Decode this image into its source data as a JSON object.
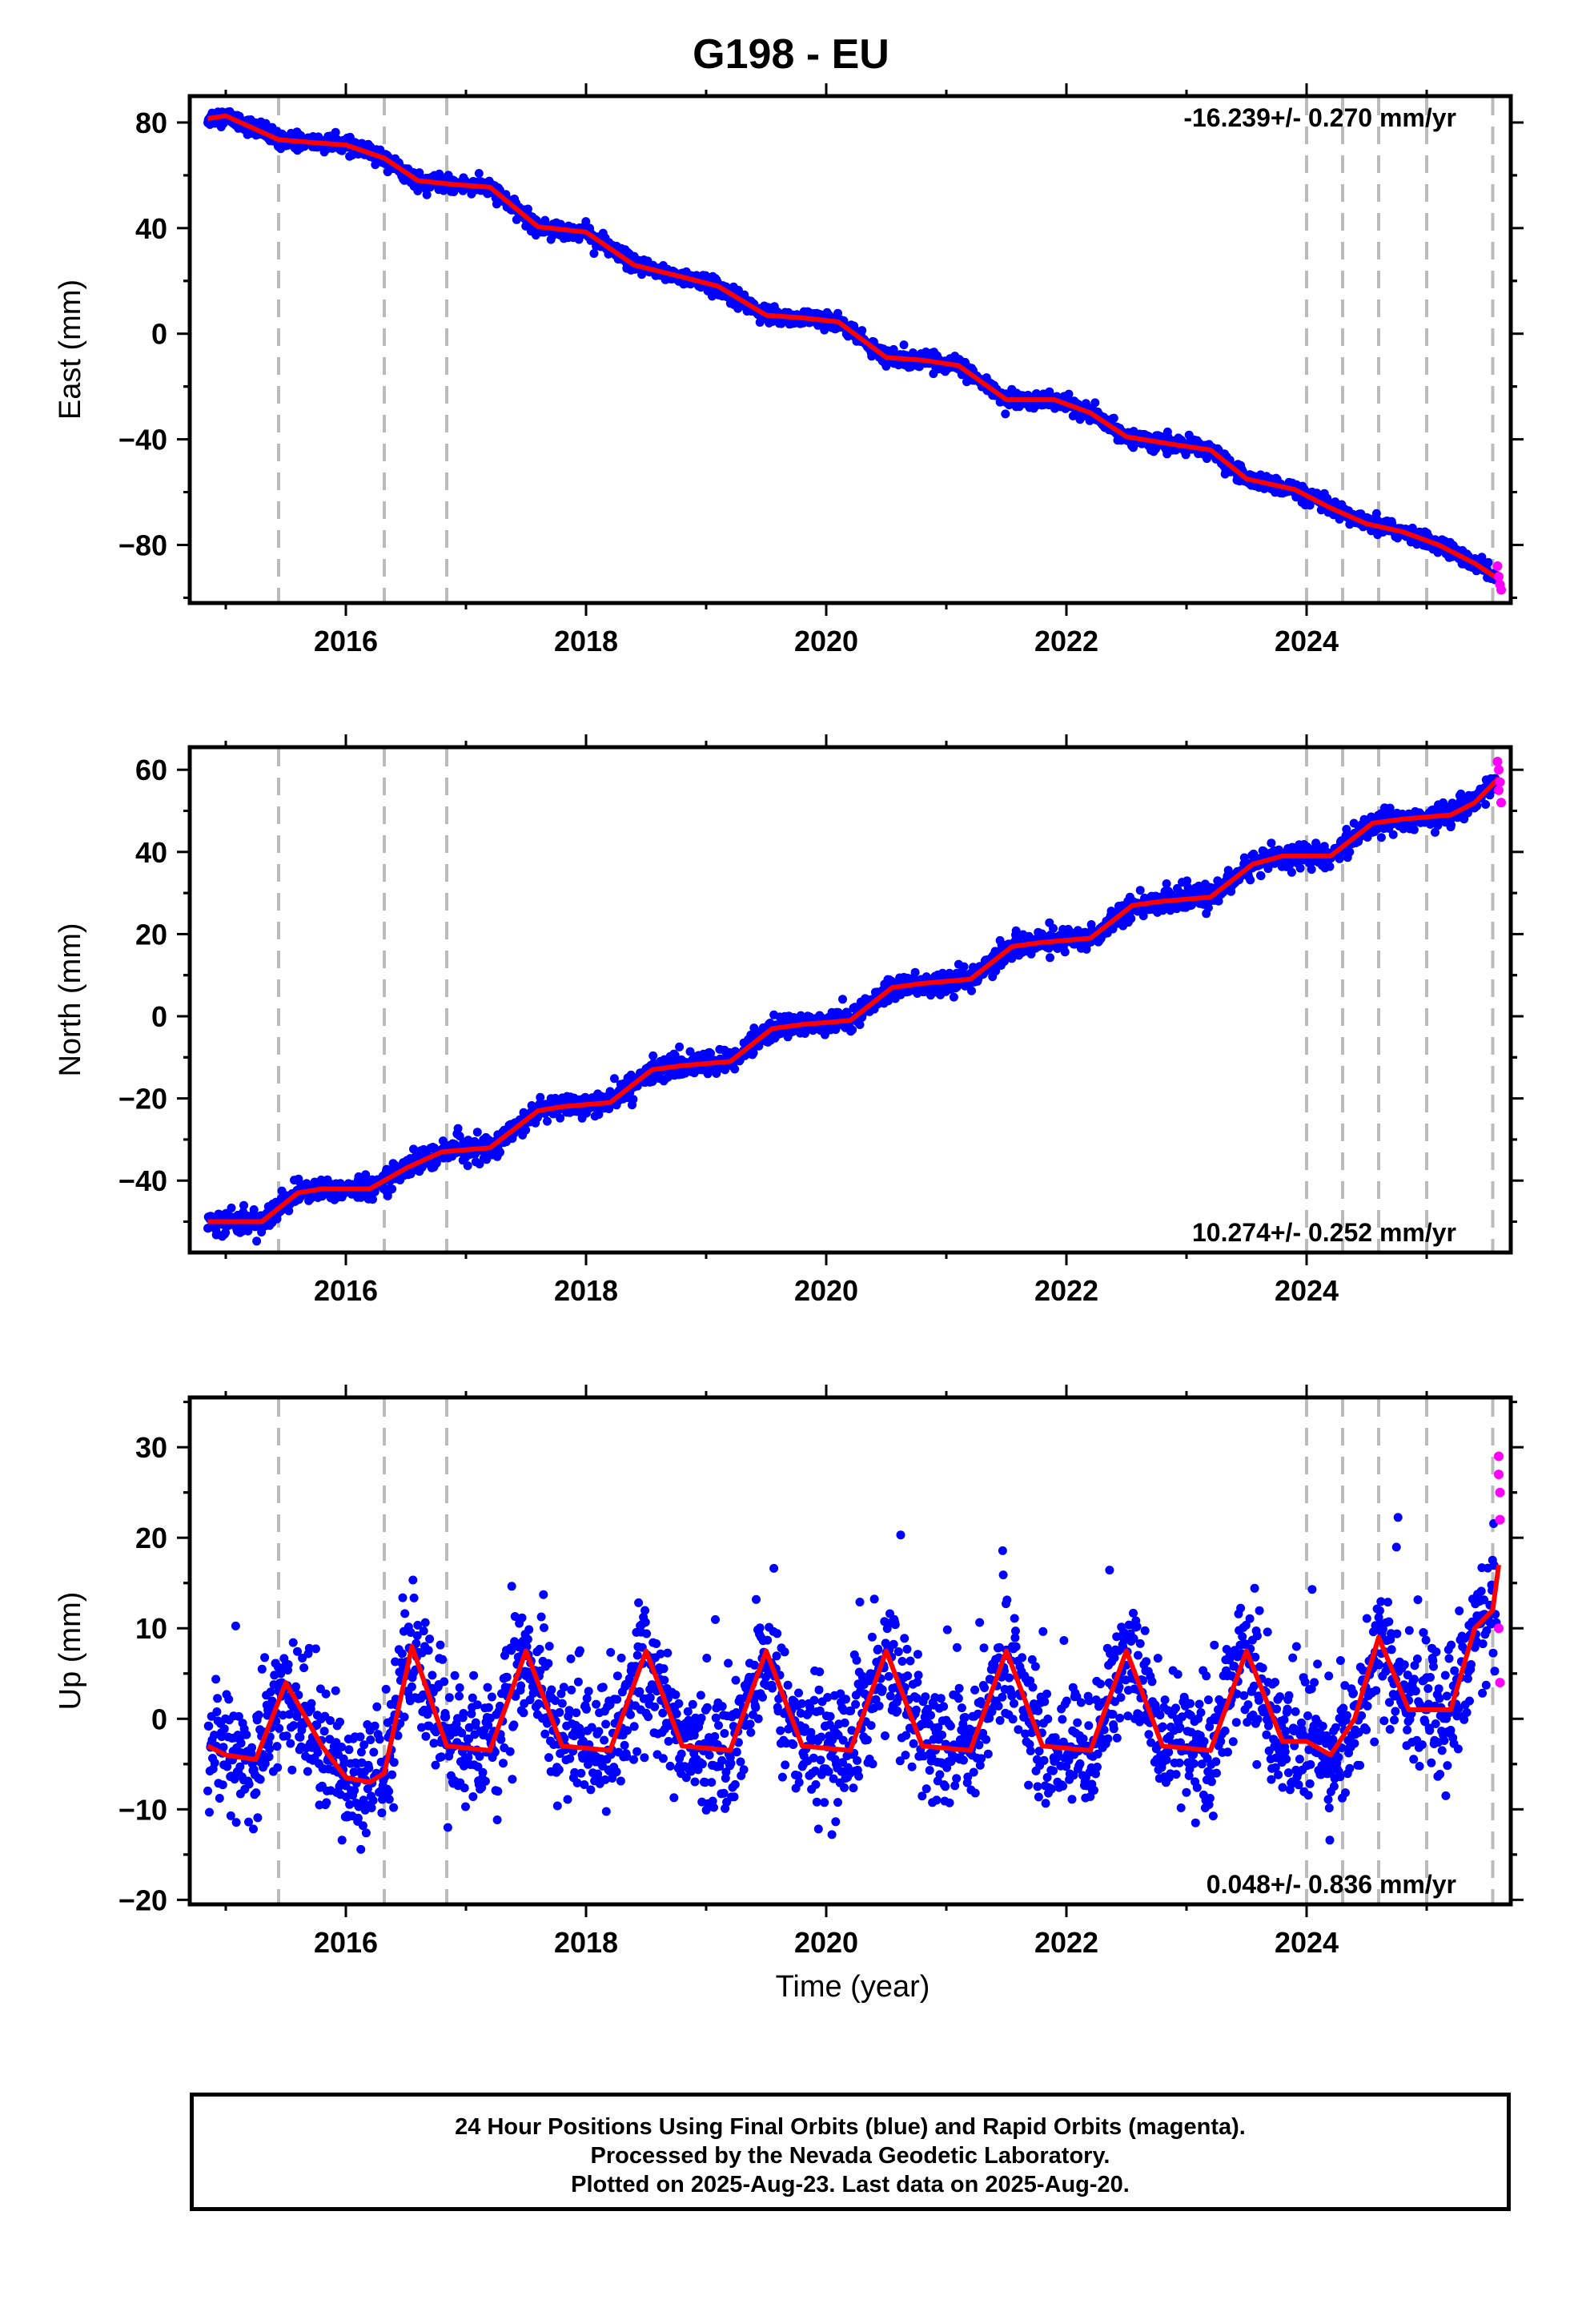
{
  "title": "G198 - EU",
  "xlabel": "Time (year)",
  "footer": {
    "line1": "24 Hour Positions Using Final Orbits (blue) and Rapid Orbits (magenta).",
    "line2": "Processed by the Nevada Geodetic Laboratory.",
    "line3": "Plotted on 2025-Aug-23. Last data on 2025-Aug-20."
  },
  "colors": {
    "final": "#0000ff",
    "rapid": "#ff00ff",
    "model": "#ff0000",
    "events": "#bbbbbb"
  },
  "chart_data": [
    {
      "type": "scatter",
      "component": "east",
      "ylabel": "East (mm)",
      "rate_text": "-16.239+/- 0.270 mm/yr",
      "rate_position": "top-right",
      "xlim": [
        2014.7,
        2025.7
      ],
      "ylim": [
        -102,
        90
      ],
      "yticks": [
        80,
        40,
        0,
        -40,
        -80
      ],
      "yticklabels": [
        "80",
        "40",
        "0",
        "−40",
        "−80"
      ],
      "xticks": [
        2016,
        2018,
        2020,
        2022,
        2024
      ],
      "xticklabels": [
        "2016",
        "2018",
        "2020",
        "2022",
        "2024"
      ],
      "event_lines": [
        2015.44,
        2016.32,
        2016.84,
        2024.0,
        2024.3,
        2024.6,
        2025.0,
        2025.55
      ],
      "model": {
        "x": [
          2014.85,
          2015.0,
          2015.44,
          2015.7,
          2016.0,
          2016.32,
          2016.6,
          2016.9,
          2017.2,
          2017.6,
          2018.0,
          2018.4,
          2018.8,
          2019.1,
          2019.5,
          2019.8,
          2020.1,
          2020.5,
          2020.8,
          2021.1,
          2021.5,
          2021.9,
          2022.2,
          2022.5,
          2022.9,
          2023.2,
          2023.5,
          2023.9,
          2024.2,
          2024.5,
          2024.8,
          2025.1,
          2025.4,
          2025.6
        ],
        "y": [
          81.5,
          82.5,
          73.5,
          72.5,
          71.5,
          66.5,
          58,
          56.5,
          55.5,
          40.5,
          38.5,
          26,
          21.5,
          18,
          7,
          6,
          4.5,
          -9,
          -10,
          -12,
          -25,
          -25,
          -30,
          -39,
          -42,
          -44,
          -55,
          -59,
          -66,
          -72,
          -75,
          -80,
          -87,
          -93
        ]
      },
      "rapid": {
        "x": [
          2025.59,
          2025.6,
          2025.61,
          2025.62
        ],
        "y": [
          -88,
          -92,
          -95,
          -97
        ]
      },
      "noise_sd": 1.5
    },
    {
      "type": "scatter",
      "component": "north",
      "ylabel": "North (mm)",
      "rate_text": "10.274+/- 0.252 mm/yr",
      "rate_position": "bottom-right",
      "xlim": [
        2014.7,
        2025.7
      ],
      "ylim": [
        -57.5,
        65.5
      ],
      "yticks": [
        60,
        40,
        20,
        0,
        -20,
        -40
      ],
      "yticklabels": [
        "60",
        "40",
        "20",
        "0",
        "−20",
        "−40"
      ],
      "xticks": [
        2016,
        2018,
        2020,
        2022,
        2024
      ],
      "xticklabels": [
        "2016",
        "2018",
        "2020",
        "2022",
        "2024"
      ],
      "event_lines": [
        2015.44,
        2016.32,
        2016.84,
        2024.0,
        2024.3,
        2024.6,
        2025.0,
        2025.55
      ],
      "model": {
        "x": [
          2014.85,
          2015.3,
          2015.6,
          2015.8,
          2016.2,
          2016.5,
          2016.8,
          2017.2,
          2017.6,
          2017.8,
          2018.2,
          2018.55,
          2018.8,
          2019.2,
          2019.55,
          2019.8,
          2020.2,
          2020.55,
          2020.8,
          2021.2,
          2021.55,
          2021.8,
          2022.2,
          2022.55,
          2022.8,
          2023.2,
          2023.55,
          2023.8,
          2024.2,
          2024.55,
          2024.8,
          2025.2,
          2025.4,
          2025.6
        ],
        "y": [
          -50,
          -50,
          -43,
          -42,
          -42,
          -37,
          -33,
          -32,
          -23,
          -22,
          -21,
          -13,
          -12,
          -11,
          -3,
          -2,
          -1,
          7,
          8,
          9,
          17,
          18,
          19,
          27,
          28,
          29,
          37,
          39,
          39,
          47,
          48,
          49,
          52,
          58
        ]
      },
      "rapid": {
        "x": [
          2025.59,
          2025.6,
          2025.61,
          2025.62,
          2025.6
        ],
        "y": [
          62,
          60,
          57,
          52,
          55
        ]
      },
      "noise_sd": 1.4
    },
    {
      "type": "scatter",
      "component": "up",
      "ylabel": "Up (mm)",
      "rate_text": "0.048+/- 0.836 mm/yr",
      "rate_position": "bottom-right",
      "xlim": [
        2014.7,
        2025.7
      ],
      "ylim": [
        -20.5,
        35.5
      ],
      "yticks": [
        30,
        20,
        10,
        0,
        -10,
        -20
      ],
      "yticklabels": [
        "30",
        "20",
        "10",
        "0",
        "−10",
        "−20"
      ],
      "xticks": [
        2016,
        2018,
        2020,
        2022,
        2024
      ],
      "xticklabels": [
        "2016",
        "2018",
        "2020",
        "2022",
        "2024"
      ],
      "event_lines": [
        2015.44,
        2016.32,
        2016.84,
        2024.0,
        2024.3,
        2024.6,
        2025.0,
        2025.55
      ],
      "model": {
        "x": [
          2014.85,
          2015.0,
          2015.25,
          2015.5,
          2015.8,
          2016.0,
          2016.2,
          2016.32,
          2016.55,
          2016.84,
          2017.2,
          2017.5,
          2017.8,
          2018.2,
          2018.5,
          2018.8,
          2019.2,
          2019.5,
          2019.8,
          2020.2,
          2020.5,
          2020.8,
          2021.2,
          2021.5,
          2021.8,
          2022.2,
          2022.5,
          2022.8,
          2023.2,
          2023.5,
          2023.8,
          2024.0,
          2024.2,
          2024.4,
          2024.6,
          2024.85,
          2025.0,
          2025.2,
          2025.4,
          2025.55,
          2025.6
        ],
        "y": [
          -3,
          -4,
          -4.5,
          4,
          -3,
          -6.5,
          -7,
          -6,
          8,
          -3,
          -3.5,
          7.5,
          -3,
          -3.5,
          7.5,
          -3,
          -3.5,
          7.5,
          -3,
          -3.5,
          7.5,
          -3,
          -3.5,
          7.5,
          -3,
          -3.5,
          7.5,
          -3,
          -3.5,
          7.5,
          -2.5,
          -2.5,
          -4,
          0,
          9,
          1,
          1,
          1,
          10,
          12,
          17
        ]
      },
      "rapid": {
        "x": [
          2025.6,
          2025.6,
          2025.61,
          2025.61,
          2025.6,
          2025.61
        ],
        "y": [
          29,
          27,
          25,
          22,
          10,
          4
        ]
      },
      "noise_sd": 3.4
    }
  ]
}
